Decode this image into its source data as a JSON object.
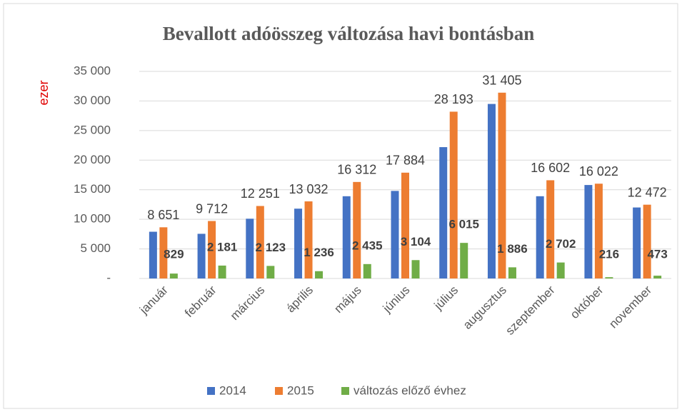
{
  "chart_data": {
    "type": "bar",
    "title": "Bevallott adóösszeg változása havi bontásban",
    "y_label": "ezer",
    "categories": [
      "január",
      "február",
      "március",
      "április",
      "május",
      "június",
      "július",
      "augusztus",
      "szeptember",
      "október",
      "november"
    ],
    "series": [
      {
        "name": "2014",
        "color": "#4472c4",
        "values": [
          7900,
          7550,
          10100,
          11800,
          13900,
          14800,
          22200,
          29500,
          13900,
          15800,
          12000
        ]
      },
      {
        "name": "2015",
        "color": "#ed7d31",
        "values": [
          8651,
          9712,
          12251,
          13032,
          16312,
          17884,
          28193,
          31405,
          16602,
          16022,
          12472
        ],
        "value_labels": [
          "8 651",
          "9 712",
          "12 251",
          "13 032",
          "16 312",
          "17 884",
          "28 193",
          "31 405",
          "16 602",
          "16 022",
          "12 472"
        ]
      },
      {
        "name": "változás előző évhez",
        "color": "#70ad47",
        "values": [
          829,
          2181,
          2123,
          1236,
          2435,
          3104,
          6015,
          1886,
          2702,
          216,
          473
        ],
        "value_labels": [
          "829",
          "2 181",
          "2 123",
          "1 236",
          "2 435",
          "3 104",
          "6 015",
          "1 886",
          "2 702",
          "216",
          "473"
        ]
      }
    ],
    "ylim": [
      0,
      35000
    ],
    "yticks": [
      {
        "value": 0,
        "label": "-"
      },
      {
        "value": 5000,
        "label": "5 000"
      },
      {
        "value": 10000,
        "label": "10 000"
      },
      {
        "value": 15000,
        "label": "15 000"
      },
      {
        "value": 20000,
        "label": "20 000"
      },
      {
        "value": 25000,
        "label": "25 000"
      },
      {
        "value": 30000,
        "label": "30 000"
      },
      {
        "value": 35000,
        "label": "35 000"
      }
    ],
    "grid": true,
    "legend": "bottom"
  }
}
